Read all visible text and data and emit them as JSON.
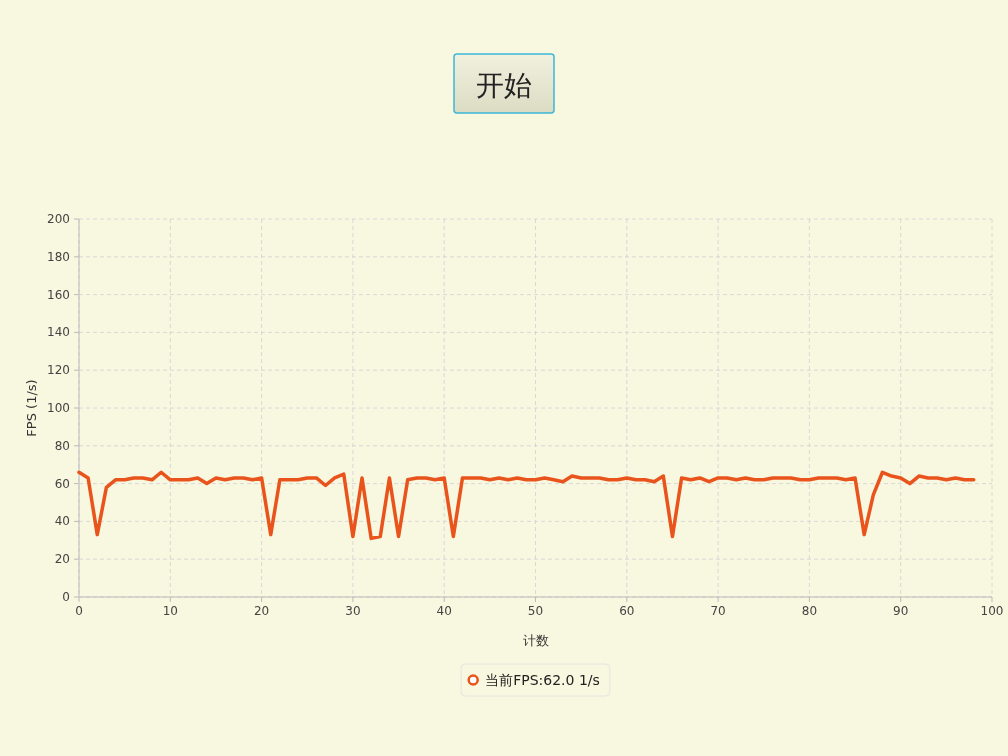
{
  "chart_data": {
    "type": "line",
    "xlabel": "计数",
    "ylabel": "FPS (1/s)",
    "annotations": [
      "开始"
    ],
    "x": [
      0,
      1,
      2,
      3,
      4,
      5,
      6,
      7,
      8,
      9,
      10,
      11,
      12,
      13,
      14,
      15,
      16,
      17,
      18,
      19,
      20,
      21,
      22,
      23,
      24,
      25,
      26,
      27,
      28,
      29,
      30,
      31,
      32,
      33,
      34,
      35,
      36,
      37,
      38,
      39,
      40,
      41,
      42,
      43,
      44,
      45,
      46,
      47,
      48,
      49,
      50,
      51,
      52,
      53,
      54,
      55,
      56,
      57,
      58,
      59,
      60,
      61,
      62,
      63,
      64,
      65,
      66,
      67,
      68,
      69,
      70,
      71,
      72,
      73,
      74,
      75,
      76,
      77,
      78,
      79,
      80,
      81,
      82,
      83,
      84,
      85,
      86,
      87,
      88,
      89,
      90,
      91,
      92,
      93,
      94,
      95,
      96,
      97,
      98
    ],
    "series": [
      {
        "name": "当前FPS:62.0 1/s",
        "color": "#e9541c",
        "values": [
          66,
          63,
          33,
          58,
          62,
          62,
          63,
          63,
          62,
          66,
          62,
          62,
          62,
          63,
          60,
          63,
          62,
          63,
          63,
          62,
          63,
          33,
          62,
          62,
          62,
          63,
          63,
          59,
          63,
          65,
          32,
          63,
          31,
          32,
          63,
          32,
          62,
          63,
          63,
          62,
          63,
          32,
          63,
          63,
          63,
          62,
          63,
          62,
          63,
          62,
          62,
          63,
          62,
          61,
          64,
          63,
          63,
          63,
          62,
          62,
          63,
          62,
          62,
          61,
          64,
          32,
          63,
          62,
          63,
          61,
          63,
          63,
          62,
          63,
          62,
          62,
          63,
          63,
          63,
          62,
          62,
          63,
          63,
          63,
          62,
          63,
          33,
          54,
          66,
          64,
          63,
          60,
          64,
          63,
          63,
          62,
          63,
          62,
          62
        ]
      }
    ],
    "xlim": [
      0,
      100
    ],
    "xticks": [
      0,
      10,
      20,
      30,
      40,
      50,
      60,
      70,
      80,
      90,
      100
    ],
    "ylim": [
      0,
      200
    ],
    "yticks": [
      0,
      20,
      40,
      60,
      80,
      100,
      120,
      140,
      160,
      180,
      200
    ],
    "grid": true,
    "legend": "bottom",
    "marker": "none",
    "line_style": "solid"
  }
}
